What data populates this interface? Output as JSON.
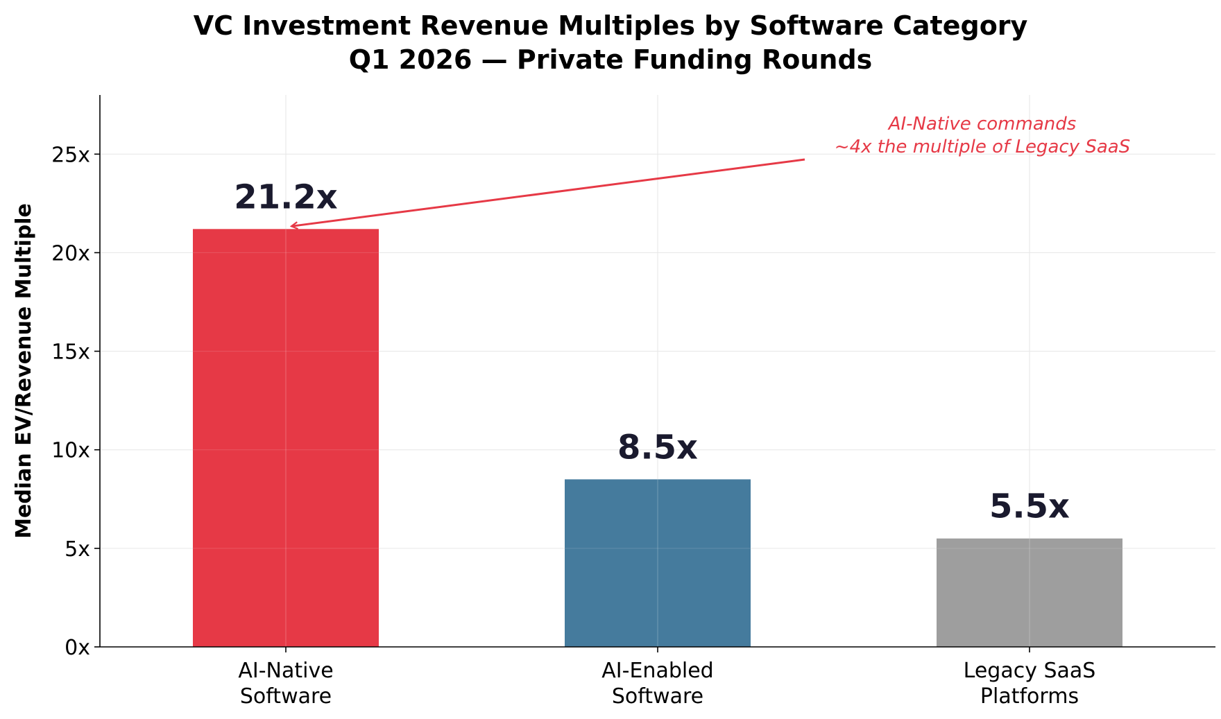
{
  "chart_data": {
    "type": "bar",
    "title": "VC Investment Revenue Multiples by Software Category",
    "subtitle": "Q1 2026 — Private Funding Rounds",
    "xlabel": "",
    "ylabel": "Median EV/Revenue Multiple",
    "categories": [
      [
        "AI-Native",
        "Software"
      ],
      [
        "AI-Enabled",
        "Software"
      ],
      [
        "Legacy SaaS",
        "Platforms"
      ]
    ],
    "values": [
      21.2,
      8.5,
      5.5
    ],
    "value_labels": [
      "21.2x",
      "8.5x",
      "5.5x"
    ],
    "colors": [
      "#e63946",
      "#457b9d",
      "#9e9e9e"
    ],
    "ylim": [
      0,
      28
    ],
    "yticks": [
      0,
      5,
      10,
      15,
      20,
      25
    ],
    "ytick_labels": [
      "0x",
      "5x",
      "10x",
      "15x",
      "20x",
      "25x"
    ],
    "grid": true,
    "annotation": {
      "lines": [
        "AI-Native commands",
        "~4x the multiple of Legacy SaaS"
      ],
      "color": "#e63946",
      "target_category": 0
    }
  }
}
